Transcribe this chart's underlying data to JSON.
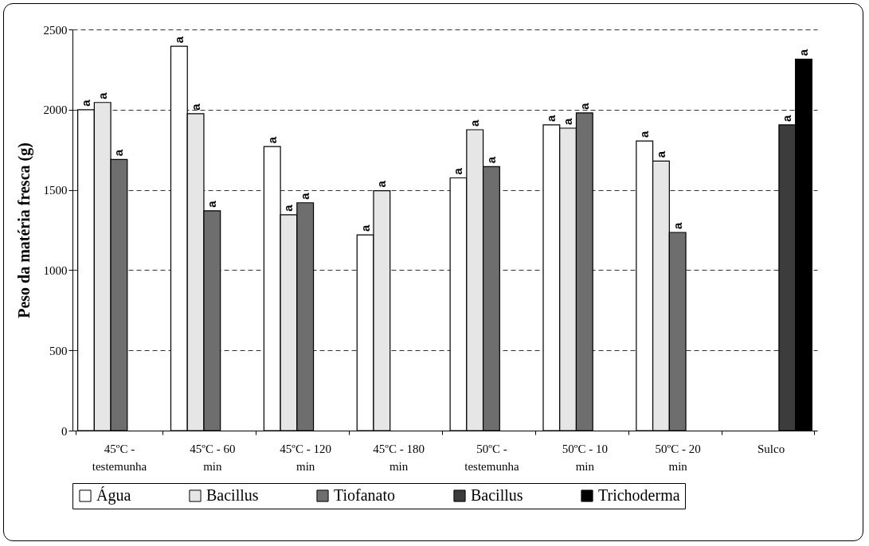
{
  "chart_data": {
    "type": "bar",
    "ylabel": "Peso da matéria fresca (g)",
    "categories": [
      "45ºC - testemunha",
      "45ºC - 60 min",
      "45ºC - 120 min",
      "45ºC - 180 min",
      "50ºC - testemunha",
      "50ºC - 10 min",
      "50ºC - 20 min",
      "Sulco"
    ],
    "series": [
      {
        "name": "Água",
        "color": "#ffffff",
        "values": [
          2000,
          2395,
          1770,
          1220,
          1575,
          1905,
          1805,
          null
        ],
        "value_labels": [
          "a",
          "a",
          "a",
          "a",
          "a",
          "a",
          "a",
          null
        ]
      },
      {
        "name": "Bacillus",
        "color": "#e6e6e6",
        "values": [
          2045,
          1975,
          1345,
          1495,
          1875,
          1885,
          1680,
          null
        ],
        "value_labels": [
          "a",
          "a",
          "a",
          "a",
          "a",
          "a",
          "a",
          null
        ]
      },
      {
        "name": "Tiofanato",
        "color": "#6e6e6e",
        "values": [
          1690,
          1370,
          1420,
          null,
          1645,
          1980,
          1235,
          null
        ],
        "value_labels": [
          "a",
          "a",
          "a",
          null,
          "a",
          "a",
          "a",
          null
        ]
      },
      {
        "name": "Bacillus",
        "color": "#3c3c3c",
        "values": [
          null,
          null,
          null,
          null,
          null,
          null,
          null,
          1905
        ],
        "value_labels": [
          null,
          null,
          null,
          null,
          null,
          null,
          null,
          "a"
        ]
      },
      {
        "name": "Trichoderma",
        "color": "#000000",
        "values": [
          null,
          null,
          null,
          null,
          null,
          null,
          null,
          2315
        ],
        "value_labels": [
          null,
          null,
          null,
          null,
          null,
          null,
          null,
          "a"
        ]
      }
    ],
    "ylim": [
      0,
      2500
    ],
    "yticks": [
      0,
      500,
      1000,
      1500,
      2000,
      2500
    ],
    "grid": "y",
    "legend": "bottom"
  }
}
